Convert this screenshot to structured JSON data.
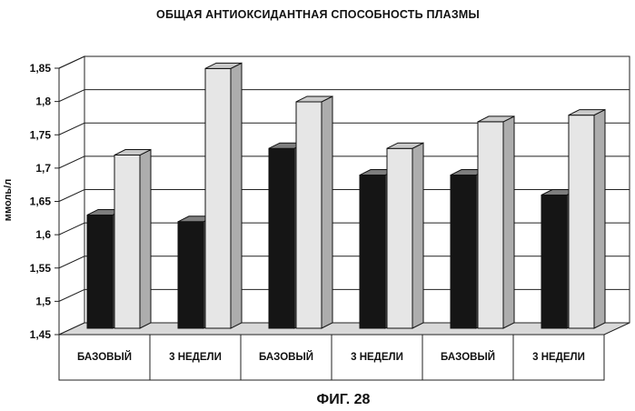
{
  "chart_data": {
    "type": "bar",
    "title": "ОБЩАЯ АНТИОКСИДАНТНАЯ СПОСОБНОСТЬ ПЛАЗМЫ",
    "ylabel": "ммоль/л",
    "xlabel": "",
    "categories": [
      "БАЗОВЫЙ",
      "3 НЕДЕЛИ",
      "БАЗОВЫЙ",
      "3 НЕДЕЛИ",
      "БАЗОВЫЙ",
      "3 НЕДЕЛИ"
    ],
    "series": [
      {
        "color": "#151515",
        "values": [
          1.62,
          1.61,
          1.72,
          1.68,
          1.68,
          1.65
        ]
      },
      {
        "color": "#e6e6e6",
        "values": [
          1.71,
          1.84,
          1.79,
          1.72,
          1.76,
          1.77
        ]
      }
    ],
    "ylim": [
      1.45,
      1.85
    ],
    "yticks": [
      "1,45",
      "1,5",
      "1,55",
      "1,6",
      "1,65",
      "1,7",
      "1,75",
      "1,8",
      "1,85"
    ],
    "grid": true,
    "style": "3d-bar"
  },
  "caption": "ФИГ. 28"
}
